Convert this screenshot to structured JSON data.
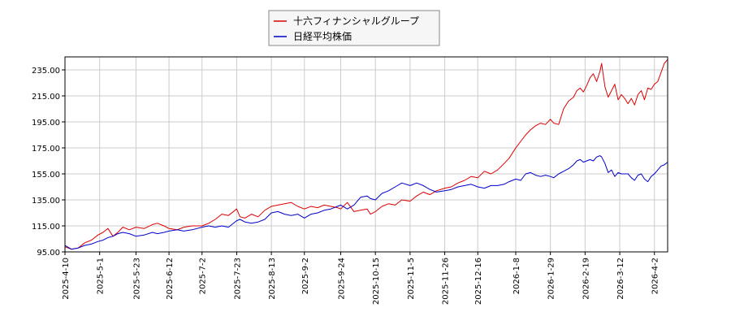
{
  "chart_data": {
    "type": "line",
    "title": "",
    "xlabel": "",
    "ylabel": "",
    "x_start": "2025-04-10",
    "x_end": "2026-04-10",
    "ylim": [
      95,
      245
    ],
    "yticks": [
      95,
      115,
      135,
      155,
      175,
      195,
      215,
      235
    ],
    "ytick_labels": [
      "95.00",
      "115.00",
      "135.00",
      "155.00",
      "175.00",
      "195.00",
      "215.00",
      "235.00"
    ],
    "xticks": [
      "2025-04-10",
      "2025-05-01",
      "2025-05-23",
      "2025-06-12",
      "2025-07-02",
      "2025-07-23",
      "2025-08-13",
      "2025-09-02",
      "2025-09-24",
      "2025-10-15",
      "2025-11-05",
      "2025-11-26",
      "2025-12-16",
      "2026-01-08",
      "2026-01-29",
      "2026-02-19",
      "2026-03-12",
      "2026-04-02"
    ],
    "xtick_labels": [
      "2025-4-10",
      "2025-5-1",
      "2025-5-23",
      "2025-6-12",
      "2025-7-2",
      "2025-7-23",
      "2025-8-13",
      "2025-9-2",
      "2025-9-24",
      "2025-10-15",
      "2025-11-5",
      "2025-11-26",
      "2025-12-16",
      "2026-1-8",
      "2026-1-29",
      "2026-2-19",
      "2026-3-12",
      "2026-4-2"
    ],
    "grid": true,
    "legend_position": "top-center",
    "series": [
      {
        "name": "十六フィナンシャルグループ",
        "color": "#dd0000",
        "points": [
          [
            "2025-04-10",
            99
          ],
          [
            "2025-04-14",
            97
          ],
          [
            "2025-04-18",
            98
          ],
          [
            "2025-04-22",
            102
          ],
          [
            "2025-04-26",
            104
          ],
          [
            "2025-04-30",
            108
          ],
          [
            "2025-05-03",
            110
          ],
          [
            "2025-05-06",
            113
          ],
          [
            "2025-05-09",
            107
          ],
          [
            "2025-05-12",
            110
          ],
          [
            "2025-05-15",
            114
          ],
          [
            "2025-05-19",
            112
          ],
          [
            "2025-05-23",
            114
          ],
          [
            "2025-05-28",
            113
          ],
          [
            "2025-06-02",
            116
          ],
          [
            "2025-06-05",
            117
          ],
          [
            "2025-06-09",
            115
          ],
          [
            "2025-06-12",
            113
          ],
          [
            "2025-06-17",
            112
          ],
          [
            "2025-06-21",
            114
          ],
          [
            "2025-06-26",
            115
          ],
          [
            "2025-07-02",
            115
          ],
          [
            "2025-07-06",
            117
          ],
          [
            "2025-07-10",
            120
          ],
          [
            "2025-07-14",
            124
          ],
          [
            "2025-07-18",
            123
          ],
          [
            "2025-07-23",
            128
          ],
          [
            "2025-07-25",
            122
          ],
          [
            "2025-07-28",
            121
          ],
          [
            "2025-08-01",
            124
          ],
          [
            "2025-08-05",
            122
          ],
          [
            "2025-08-09",
            127
          ],
          [
            "2025-08-13",
            130
          ],
          [
            "2025-08-17",
            131
          ],
          [
            "2025-08-21",
            132
          ],
          [
            "2025-08-25",
            133
          ],
          [
            "2025-08-29",
            130
          ],
          [
            "2025-09-02",
            128
          ],
          [
            "2025-09-06",
            130
          ],
          [
            "2025-09-10",
            129
          ],
          [
            "2025-09-14",
            131
          ],
          [
            "2025-09-18",
            130
          ],
          [
            "2025-09-22",
            129
          ],
          [
            "2025-09-24",
            128
          ],
          [
            "2025-09-28",
            133
          ],
          [
            "2025-10-02",
            126
          ],
          [
            "2025-10-06",
            127
          ],
          [
            "2025-10-10",
            128
          ],
          [
            "2025-10-12",
            124
          ],
          [
            "2025-10-15",
            126
          ],
          [
            "2025-10-19",
            130
          ],
          [
            "2025-10-23",
            132
          ],
          [
            "2025-10-27",
            131
          ],
          [
            "2025-10-31",
            135
          ],
          [
            "2025-11-05",
            134
          ],
          [
            "2025-11-09",
            138
          ],
          [
            "2025-11-13",
            141
          ],
          [
            "2025-11-17",
            139
          ],
          [
            "2025-11-21",
            142
          ],
          [
            "2025-11-26",
            144
          ],
          [
            "2025-11-30",
            145
          ],
          [
            "2025-12-04",
            148
          ],
          [
            "2025-12-08",
            150
          ],
          [
            "2025-12-12",
            153
          ],
          [
            "2025-12-16",
            152
          ],
          [
            "2025-12-20",
            157
          ],
          [
            "2025-12-24",
            155
          ],
          [
            "2025-12-28",
            158
          ],
          [
            "2026-01-01",
            163
          ],
          [
            "2026-01-04",
            167
          ],
          [
            "2026-01-08",
            175
          ],
          [
            "2026-01-11",
            180
          ],
          [
            "2026-01-14",
            185
          ],
          [
            "2026-01-17",
            189
          ],
          [
            "2026-01-20",
            192
          ],
          [
            "2026-01-23",
            194
          ],
          [
            "2026-01-26",
            193
          ],
          [
            "2026-01-29",
            197
          ],
          [
            "2026-01-31",
            194
          ],
          [
            "2026-02-03",
            193
          ],
          [
            "2026-02-06",
            205
          ],
          [
            "2026-02-09",
            211
          ],
          [
            "2026-02-12",
            214
          ],
          [
            "2026-02-14",
            219
          ],
          [
            "2026-02-16",
            221
          ],
          [
            "2026-02-18",
            218
          ],
          [
            "2026-02-20",
            223
          ],
          [
            "2026-02-22",
            229
          ],
          [
            "2026-02-24",
            232
          ],
          [
            "2026-02-26",
            226
          ],
          [
            "2026-02-28",
            234
          ],
          [
            "2026-03-01",
            240
          ],
          [
            "2026-03-03",
            222
          ],
          [
            "2026-03-05",
            214
          ],
          [
            "2026-03-07",
            219
          ],
          [
            "2026-03-09",
            224
          ],
          [
            "2026-03-11",
            212
          ],
          [
            "2026-03-13",
            216
          ],
          [
            "2026-03-15",
            213
          ],
          [
            "2026-03-17",
            209
          ],
          [
            "2026-03-19",
            213
          ],
          [
            "2026-03-21",
            208
          ],
          [
            "2026-03-23",
            216
          ],
          [
            "2026-03-25",
            219
          ],
          [
            "2026-03-27",
            212
          ],
          [
            "2026-03-29",
            221
          ],
          [
            "2026-03-31",
            220
          ],
          [
            "2026-04-02",
            224
          ],
          [
            "2026-04-04",
            226
          ],
          [
            "2026-04-06",
            233
          ],
          [
            "2026-04-08",
            240
          ],
          [
            "2026-04-10",
            243
          ]
        ]
      },
      {
        "name": "日経平均株価",
        "color": "#0000cc",
        "points": [
          [
            "2025-04-10",
            100
          ],
          [
            "2025-04-14",
            97
          ],
          [
            "2025-04-18",
            98
          ],
          [
            "2025-04-22",
            100
          ],
          [
            "2025-04-26",
            101
          ],
          [
            "2025-04-30",
            103
          ],
          [
            "2025-05-03",
            104
          ],
          [
            "2025-05-06",
            106
          ],
          [
            "2025-05-09",
            107
          ],
          [
            "2025-05-12",
            109
          ],
          [
            "2025-05-15",
            110
          ],
          [
            "2025-05-19",
            109
          ],
          [
            "2025-05-23",
            107
          ],
          [
            "2025-05-28",
            108
          ],
          [
            "2025-06-02",
            110
          ],
          [
            "2025-06-05",
            109
          ],
          [
            "2025-06-09",
            110
          ],
          [
            "2025-06-12",
            111
          ],
          [
            "2025-06-17",
            112
          ],
          [
            "2025-06-21",
            111
          ],
          [
            "2025-06-26",
            112
          ],
          [
            "2025-07-02",
            114
          ],
          [
            "2025-07-06",
            115
          ],
          [
            "2025-07-10",
            114
          ],
          [
            "2025-07-14",
            115
          ],
          [
            "2025-07-18",
            114
          ],
          [
            "2025-07-23",
            119
          ],
          [
            "2025-07-25",
            120
          ],
          [
            "2025-07-28",
            118
          ],
          [
            "2025-08-01",
            117
          ],
          [
            "2025-08-05",
            118
          ],
          [
            "2025-08-09",
            120
          ],
          [
            "2025-08-13",
            125
          ],
          [
            "2025-08-17",
            126
          ],
          [
            "2025-08-21",
            124
          ],
          [
            "2025-08-25",
            123
          ],
          [
            "2025-08-29",
            124
          ],
          [
            "2025-09-02",
            121
          ],
          [
            "2025-09-06",
            124
          ],
          [
            "2025-09-10",
            125
          ],
          [
            "2025-09-14",
            127
          ],
          [
            "2025-09-18",
            128
          ],
          [
            "2025-09-22",
            130
          ],
          [
            "2025-09-24",
            131
          ],
          [
            "2025-09-28",
            128
          ],
          [
            "2025-10-02",
            131
          ],
          [
            "2025-10-06",
            137
          ],
          [
            "2025-10-10",
            138
          ],
          [
            "2025-10-12",
            136
          ],
          [
            "2025-10-15",
            135
          ],
          [
            "2025-10-19",
            140
          ],
          [
            "2025-10-23",
            142
          ],
          [
            "2025-10-27",
            145
          ],
          [
            "2025-10-31",
            148
          ],
          [
            "2025-11-05",
            146
          ],
          [
            "2025-11-09",
            148
          ],
          [
            "2025-11-13",
            146
          ],
          [
            "2025-11-17",
            143
          ],
          [
            "2025-11-21",
            141
          ],
          [
            "2025-11-26",
            142
          ],
          [
            "2025-11-30",
            143
          ],
          [
            "2025-12-04",
            145
          ],
          [
            "2025-12-08",
            146
          ],
          [
            "2025-12-12",
            147
          ],
          [
            "2025-12-16",
            145
          ],
          [
            "2025-12-20",
            144
          ],
          [
            "2025-12-24",
            146
          ],
          [
            "2025-12-28",
            146
          ],
          [
            "2026-01-01",
            147
          ],
          [
            "2026-01-04",
            149
          ],
          [
            "2026-01-08",
            151
          ],
          [
            "2026-01-11",
            150
          ],
          [
            "2026-01-14",
            155
          ],
          [
            "2026-01-17",
            156
          ],
          [
            "2026-01-20",
            154
          ],
          [
            "2026-01-23",
            153
          ],
          [
            "2026-01-26",
            154
          ],
          [
            "2026-01-29",
            153
          ],
          [
            "2026-01-31",
            152
          ],
          [
            "2026-02-03",
            155
          ],
          [
            "2026-02-06",
            157
          ],
          [
            "2026-02-09",
            159
          ],
          [
            "2026-02-12",
            162
          ],
          [
            "2026-02-14",
            165
          ],
          [
            "2026-02-16",
            166
          ],
          [
            "2026-02-18",
            164
          ],
          [
            "2026-02-20",
            165
          ],
          [
            "2026-02-22",
            166
          ],
          [
            "2026-02-24",
            165
          ],
          [
            "2026-02-26",
            168
          ],
          [
            "2026-02-28",
            169
          ],
          [
            "2026-03-01",
            168
          ],
          [
            "2026-03-03",
            163
          ],
          [
            "2026-03-05",
            156
          ],
          [
            "2026-03-07",
            158
          ],
          [
            "2026-03-09",
            153
          ],
          [
            "2026-03-11",
            156
          ],
          [
            "2026-03-13",
            155
          ],
          [
            "2026-03-15",
            155
          ],
          [
            "2026-03-17",
            155
          ],
          [
            "2026-03-19",
            152
          ],
          [
            "2026-03-21",
            150
          ],
          [
            "2026-03-23",
            154
          ],
          [
            "2026-03-25",
            155
          ],
          [
            "2026-03-27",
            151
          ],
          [
            "2026-03-29",
            149
          ],
          [
            "2026-03-31",
            153
          ],
          [
            "2026-04-02",
            155
          ],
          [
            "2026-04-04",
            158
          ],
          [
            "2026-04-06",
            161
          ],
          [
            "2026-04-08",
            162
          ],
          [
            "2026-04-10",
            164
          ]
        ]
      }
    ]
  }
}
